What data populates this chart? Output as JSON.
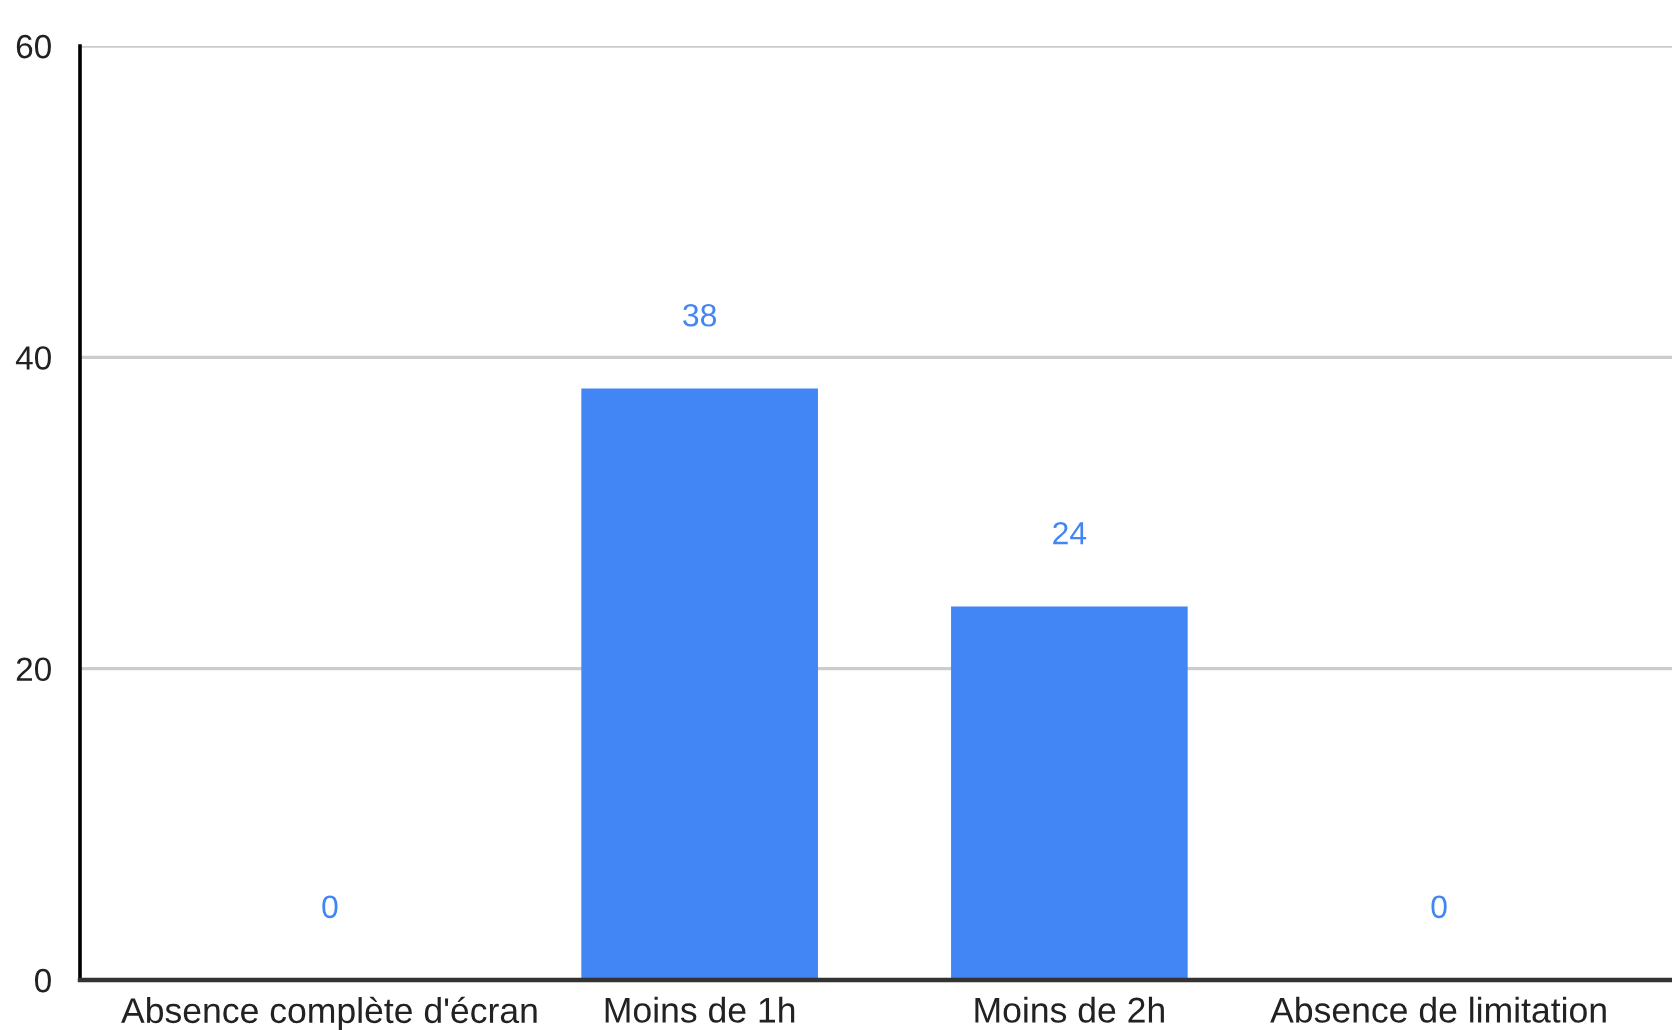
{
  "chart_data": {
    "type": "bar",
    "categories": [
      "Absence complète d'écran",
      "Moins de 1h",
      "Moins de 2h",
      "Absence de limitation"
    ],
    "values": [
      0,
      38,
      24,
      0
    ],
    "color": "#4285f4",
    "ylim": [
      0,
      60
    ],
    "yticks": [
      0,
      20,
      40,
      60
    ],
    "grid": "y",
    "data_labels": true
  }
}
